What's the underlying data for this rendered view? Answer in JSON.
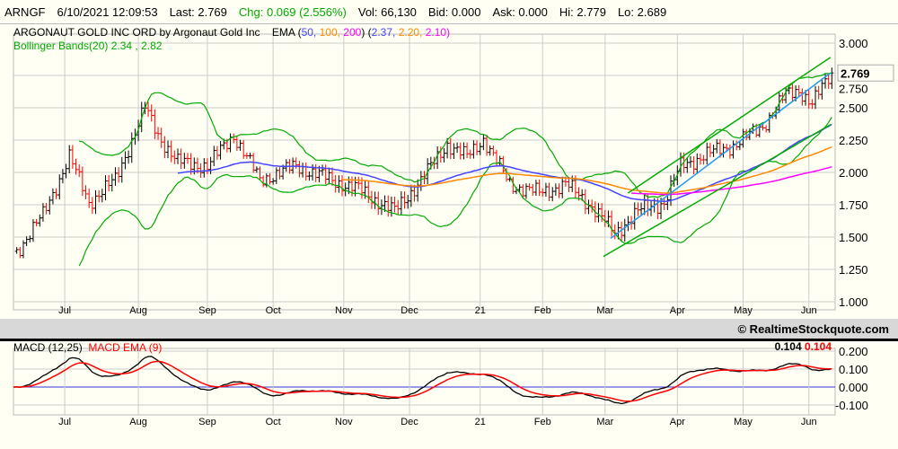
{
  "header": {
    "symbol": "ARNGF",
    "datetime": "6/10/2021 12:09:53",
    "last": "Last: 2.769",
    "chg": "Chg: 0.069 (2.556%)",
    "vol": "Vol: 66,130",
    "bid": "Bid: 0.000",
    "ask": "Ask: 0.000",
    "hi": "Hi: 2.779",
    "lo": "Lo: 2.689"
  },
  "legend": {
    "title": "ARGONAUT GOLD INC ORD by Argonaut Gold Inc",
    "ema_label": "EMA (",
    "ema_p1": "50,",
    "ema_p2": "100,",
    "ema_p3": "200",
    "ema_mid": ")  (",
    "ema_v1": "2.37,",
    "ema_v2": "2.20,",
    "ema_v3": "2.10)",
    "bollinger": "Bollinger Bands(20) 2.34 , 2.82",
    "macd_label": "MACD (12,25)",
    "macd_ema_label": "MACD EMA (9)",
    "macd_val": "0.104",
    "macd_ema_val": "0.104"
  },
  "copyright": "© RealtimeStockquote.com",
  "colors": {
    "up": "#000000",
    "down": "#ff0000",
    "bollinger": "#00aa00",
    "ema50": "#4444ff",
    "ema100": "#ff8800",
    "ema200": "#ff00ff",
    "trend": "#2299ee",
    "macd": "#000000",
    "signal": "#ff0000"
  },
  "chart_data": {
    "type": "ohlc",
    "price_axis": {
      "min": 1.0,
      "max": 3.0,
      "ticks": [
        "1.000",
        "1.250",
        "1.500",
        "1.750",
        "2.000",
        "2.250",
        "2.500",
        "2.750",
        "3.000"
      ],
      "last_label": "2.769",
      "last": 2.769
    },
    "macd_axis": {
      "min": -0.1,
      "max": 0.2,
      "ticks": [
        "-0.100",
        "0.000",
        "0.100",
        "0.200"
      ]
    },
    "x_days": 249,
    "months": [
      {
        "label": "Jul",
        "d": 15.6
      },
      {
        "label": "Aug",
        "d": 38
      },
      {
        "label": "Sep",
        "d": 59
      },
      {
        "label": "Oct",
        "d": 79
      },
      {
        "label": "Nov",
        "d": 100.5
      },
      {
        "label": "Dec",
        "d": 120.5
      },
      {
        "label": "21",
        "d": 142
      },
      {
        "label": "Feb",
        "d": 161
      },
      {
        "label": "Mar",
        "d": 180
      },
      {
        "label": "Apr",
        "d": 202
      },
      {
        "label": "May",
        "d": 222
      },
      {
        "label": "Jun",
        "d": 242
      }
    ],
    "closes": [
      [
        1,
        1.39
      ],
      [
        9,
        1.67
      ],
      [
        17,
        2.12
      ],
      [
        23,
        1.77
      ],
      [
        31,
        1.94
      ],
      [
        40,
        2.5
      ],
      [
        44,
        2.29
      ],
      [
        50,
        2.08
      ],
      [
        59,
        2.05
      ],
      [
        67,
        2.29
      ],
      [
        75,
        1.94
      ],
      [
        86,
        2.05
      ],
      [
        97,
        1.94
      ],
      [
        105,
        1.87
      ],
      [
        116,
        1.7
      ],
      [
        124,
        1.94
      ],
      [
        132,
        2.22
      ],
      [
        138,
        2.12
      ],
      [
        143,
        2.26
      ],
      [
        151,
        1.91
      ],
      [
        160,
        1.84
      ],
      [
        168,
        1.91
      ],
      [
        176,
        1.74
      ],
      [
        183,
        1.53
      ],
      [
        190,
        1.7
      ],
      [
        198,
        1.77
      ],
      [
        203,
        2.05
      ],
      [
        212,
        2.15
      ],
      [
        220,
        2.22
      ],
      [
        228,
        2.36
      ],
      [
        235,
        2.6
      ],
      [
        239,
        2.64
      ],
      [
        243,
        2.53
      ],
      [
        249,
        2.77
      ]
    ],
    "trend_lines": [
      {
        "name": "channel-upper",
        "from": [
          187,
          1.84
        ],
        "to": [
          248.6,
          2.89
        ],
        "color": "#00aa00"
      },
      {
        "name": "regression",
        "from": [
          181.7,
          1.49
        ],
        "to": [
          248.6,
          2.77
        ],
        "color": "#2299ee"
      },
      {
        "name": "channel-lower",
        "from": [
          179.5,
          1.35
        ],
        "to": [
          248.6,
          2.37
        ],
        "color": "#00aa00"
      }
    ],
    "ema_periods": [
      50,
      100,
      200
    ],
    "bollinger_period": 20,
    "macd": {
      "fast": 12,
      "slow": 25,
      "signal": 9
    }
  }
}
